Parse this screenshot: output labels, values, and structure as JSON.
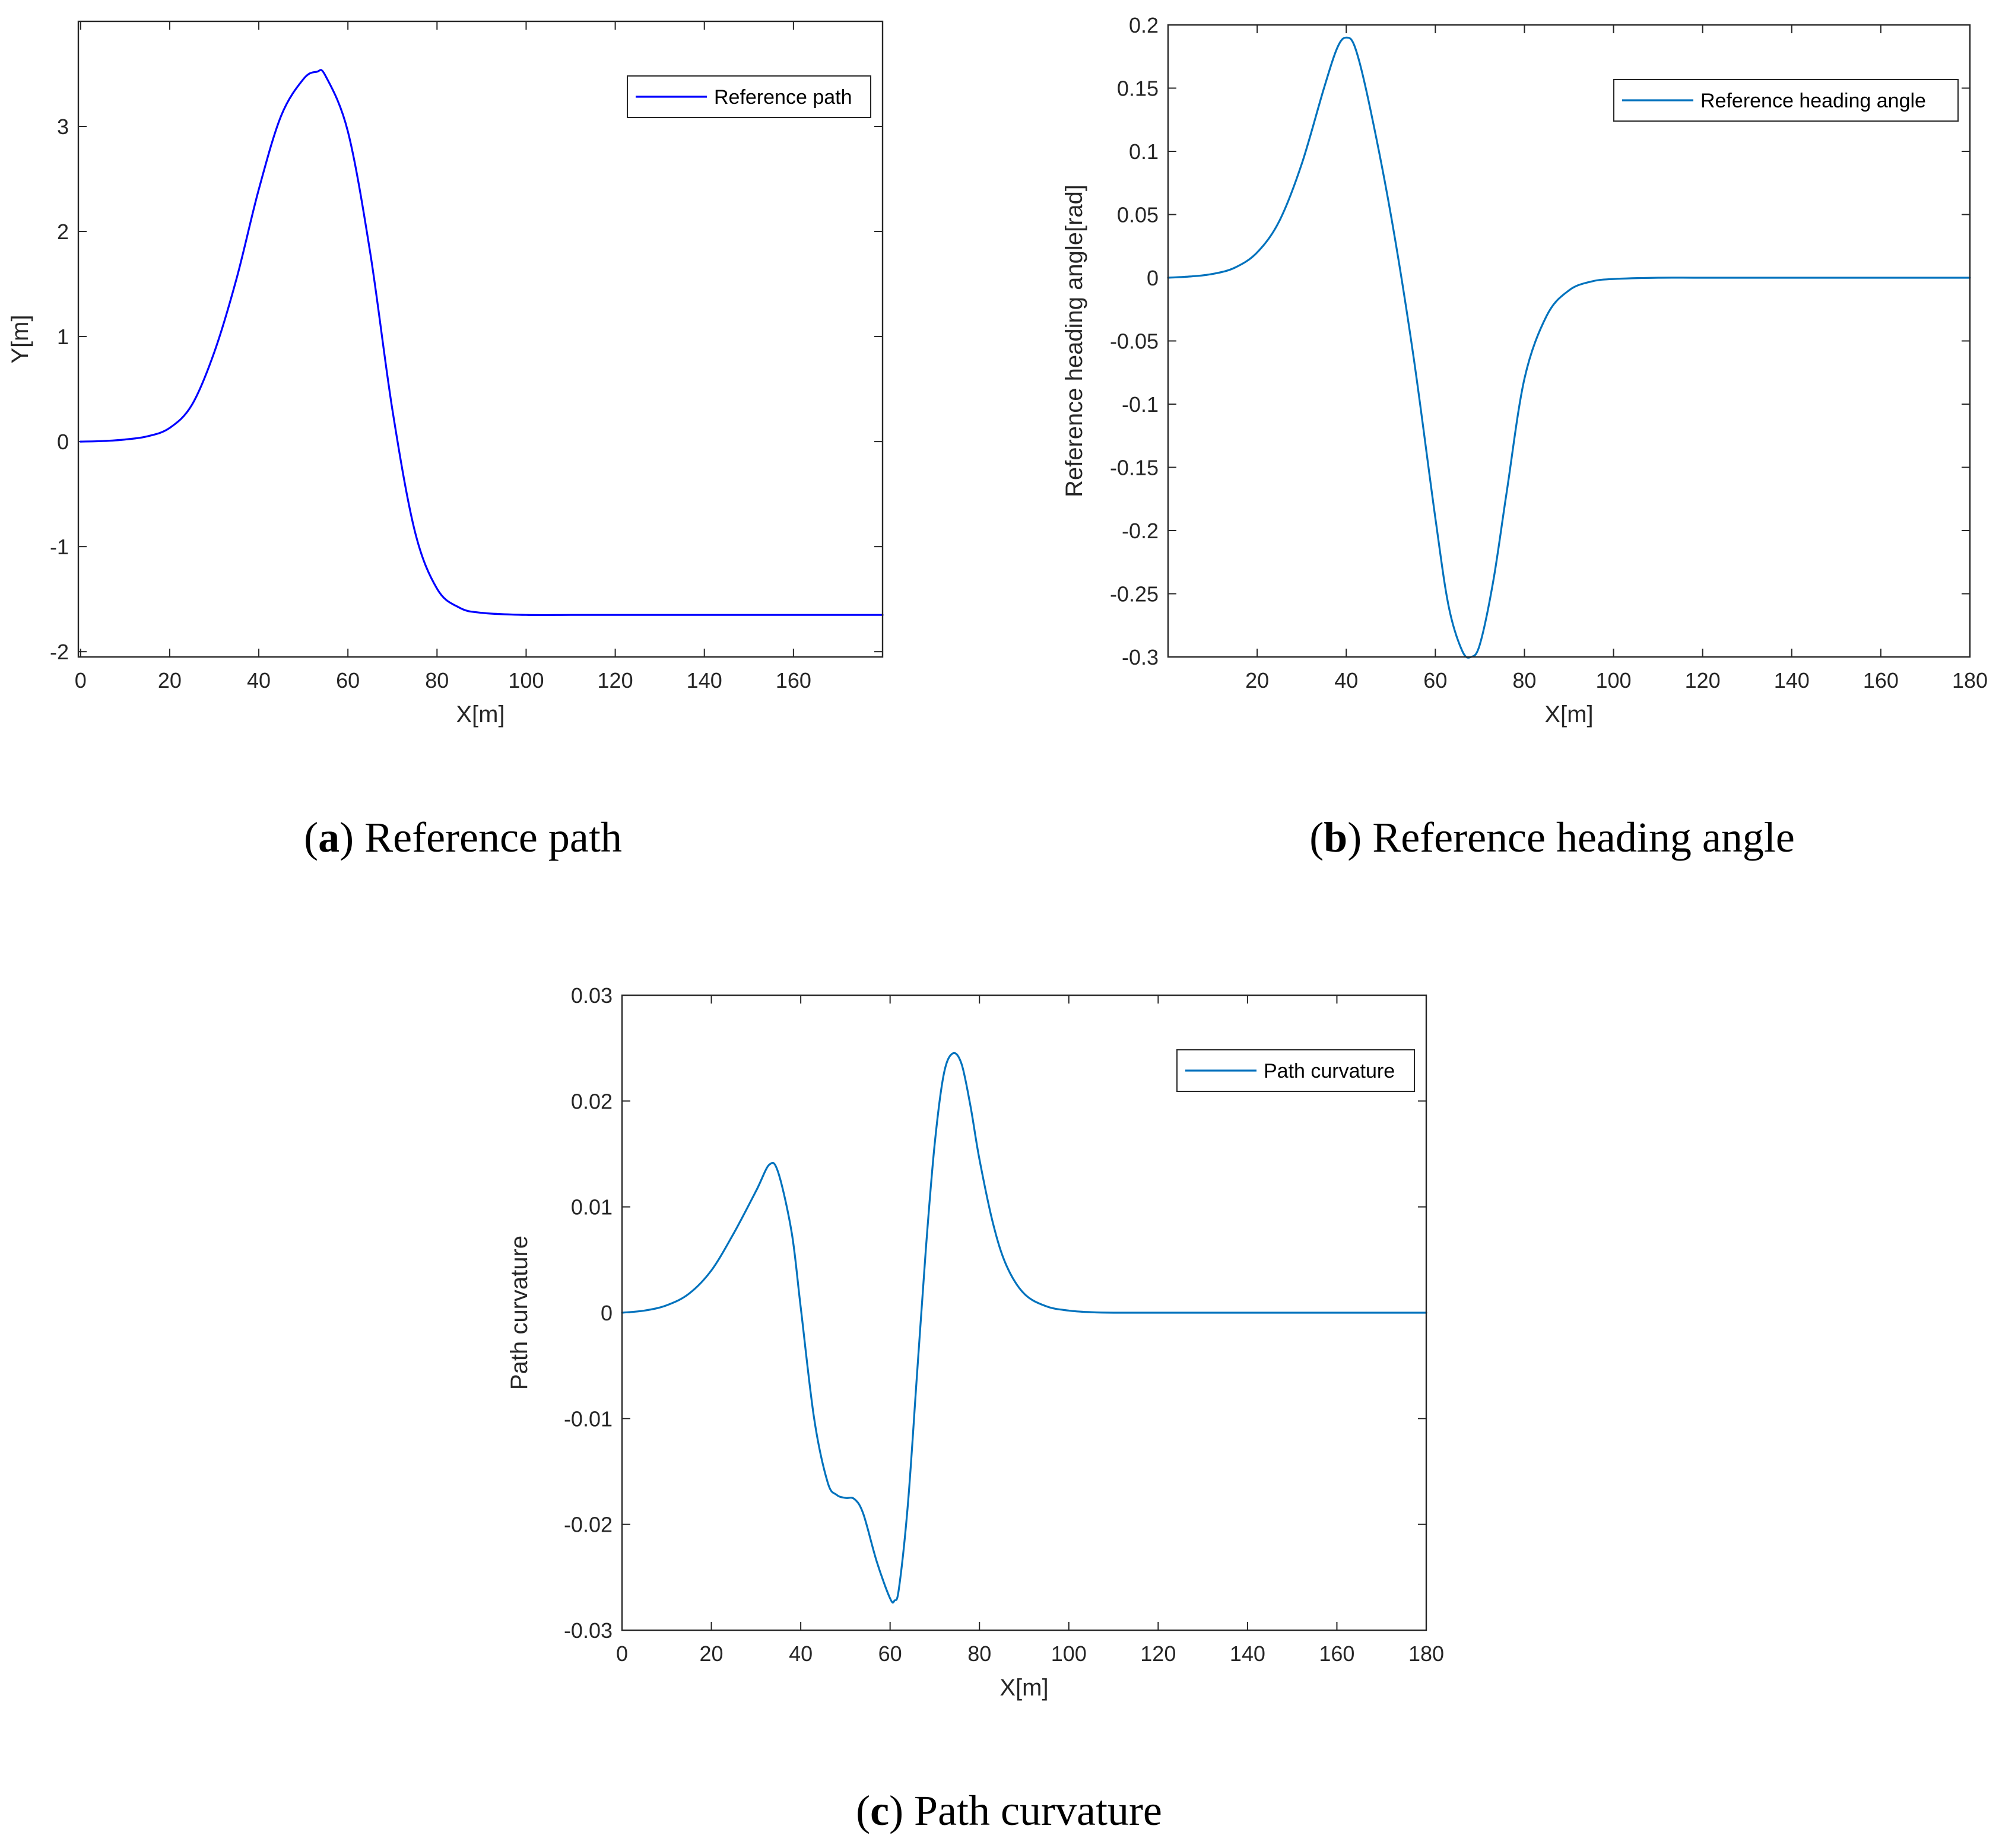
{
  "chart_data": [
    {
      "id": "a",
      "type": "line",
      "caption": {
        "letter": "a",
        "text": "Reference path"
      },
      "xlabel": "X[m]",
      "ylabel": "Y[m]",
      "xlim": [
        -0.5,
        180
      ],
      "ylim": [
        -2.05,
        4.0
      ],
      "xticks": [
        0,
        20,
        40,
        60,
        80,
        100,
        120,
        140,
        160
      ],
      "yticks": [
        -2,
        -1,
        0,
        1,
        2,
        3
      ],
      "legend": {
        "label": "Reference path",
        "position": "top-right"
      },
      "series": [
        {
          "name": "Reference path",
          "color": "#0000ff",
          "x": [
            0,
            5,
            10,
            15,
            20,
            25,
            30,
            35,
            40,
            45,
            50,
            53,
            55,
            60,
            65,
            70,
            75,
            80,
            85,
            90,
            100,
            110,
            120,
            140,
            160,
            180
          ],
          "y": [
            0,
            0.005,
            0.02,
            0.05,
            0.13,
            0.35,
            0.85,
            1.55,
            2.4,
            3.1,
            3.45,
            3.52,
            3.48,
            2.95,
            1.8,
            0.3,
            -0.85,
            -1.4,
            -1.58,
            -1.63,
            -1.65,
            -1.65,
            -1.65,
            -1.65,
            -1.65,
            -1.65
          ]
        }
      ]
    },
    {
      "id": "b",
      "type": "line",
      "caption": {
        "letter": "b",
        "text": "Reference heading angle"
      },
      "xlabel": "X[m]",
      "ylabel": "Reference heading angle[rad]",
      "xlim": [
        0,
        180
      ],
      "ylim": [
        -0.3,
        0.2
      ],
      "xticks": [
        20,
        40,
        60,
        80,
        100,
        120,
        140,
        160,
        180
      ],
      "yticks": [
        -0.3,
        -0.25,
        -0.2,
        -0.15,
        -0.1,
        -0.05,
        0,
        0.05,
        0.1,
        0.15,
        0.2
      ],
      "legend": {
        "label": "Reference heading angle",
        "position": "top-right"
      },
      "series": [
        {
          "name": "Reference heading angle",
          "color": "#0072bd",
          "x": [
            0,
            5,
            10,
            15,
            20,
            25,
            30,
            35,
            38,
            40,
            42,
            45,
            50,
            55,
            60,
            63,
            66,
            68,
            70,
            73,
            76,
            80,
            85,
            90,
            95,
            100,
            110,
            120,
            140,
            160,
            180
          ],
          "y": [
            0,
            0.001,
            0.003,
            0.008,
            0.02,
            0.045,
            0.09,
            0.15,
            0.182,
            0.19,
            0.182,
            0.14,
            0.05,
            -0.06,
            -0.19,
            -0.26,
            -0.295,
            -0.3,
            -0.29,
            -0.24,
            -0.17,
            -0.08,
            -0.03,
            -0.01,
            -0.003,
            -0.001,
            0,
            0,
            0,
            0,
            0
          ]
        }
      ]
    },
    {
      "id": "c",
      "type": "line",
      "caption": {
        "letter": "c",
        "text": "Path curvature"
      },
      "xlabel": "X[m]",
      "ylabel": "Path curvature",
      "xlim": [
        0,
        180
      ],
      "ylim": [
        -0.03,
        0.03
      ],
      "xticks": [
        0,
        20,
        40,
        60,
        80,
        100,
        120,
        140,
        160,
        180
      ],
      "yticks": [
        -0.03,
        -0.02,
        -0.01,
        0,
        0.01,
        0.02,
        0.03
      ],
      "legend": {
        "label": "Path curvature",
        "position": "top-right"
      },
      "series": [
        {
          "name": "Path curvature",
          "color": "#0072bd",
          "x": [
            0,
            5,
            10,
            15,
            20,
            25,
            30,
            33,
            35,
            38,
            40,
            43,
            46,
            48,
            50,
            52,
            54,
            57,
            60,
            61,
            62,
            64,
            66,
            68,
            70,
            72,
            74,
            76,
            78,
            80,
            83,
            86,
            90,
            95,
            100,
            105,
            110,
            120,
            140,
            160,
            180
          ],
          "y": [
            0,
            0.0002,
            0.0007,
            0.0018,
            0.004,
            0.0075,
            0.0115,
            0.014,
            0.0132,
            0.0075,
            0.0005,
            -0.01,
            -0.016,
            -0.0172,
            -0.0175,
            -0.0176,
            -0.019,
            -0.0235,
            -0.027,
            -0.0272,
            -0.026,
            -0.018,
            -0.006,
            0.006,
            0.016,
            0.0225,
            0.0245,
            0.0235,
            0.0195,
            0.0145,
            0.0085,
            0.0045,
            0.0018,
            0.0006,
            0.0002,
            5e-05,
            0,
            0,
            0,
            0,
            0
          ]
        }
      ]
    }
  ]
}
